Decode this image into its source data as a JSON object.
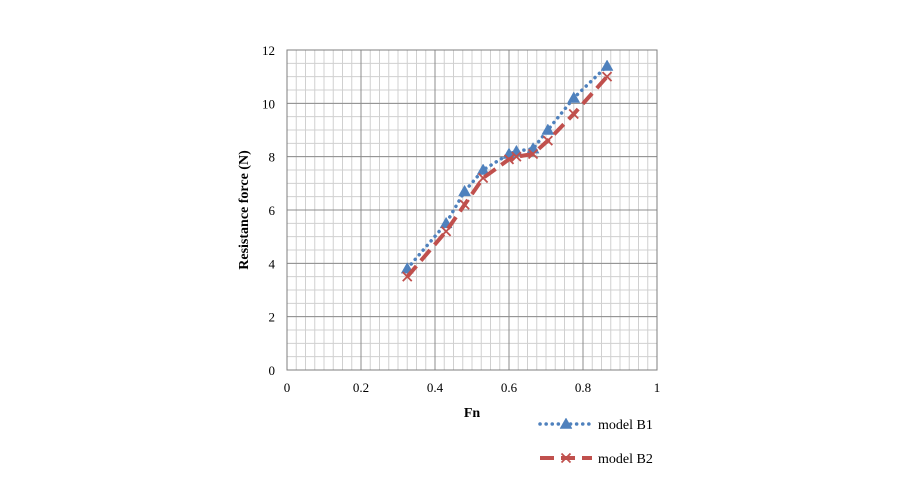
{
  "chart_data": {
    "type": "line",
    "title": "",
    "xlabel": "Fn",
    "ylabel": "Resistance force (N)",
    "xlim": [
      0,
      1
    ],
    "ylim": [
      0,
      12
    ],
    "x_ticks": [
      "0",
      "0.2",
      "0.4",
      "0.6",
      "0.8",
      "1"
    ],
    "y_ticks": [
      "0",
      "2",
      "4",
      "6",
      "8",
      "10",
      "12"
    ],
    "grid": true,
    "legend_position": "bottom-right",
    "series": [
      {
        "name": "model B1",
        "color": "#4f81bd",
        "line_style": "dotted",
        "marker": "triangle",
        "points": [
          {
            "x": 0.325,
            "y": 3.8
          },
          {
            "x": 0.43,
            "y": 5.5
          },
          {
            "x": 0.48,
            "y": 6.7
          },
          {
            "x": 0.53,
            "y": 7.5
          },
          {
            "x": 0.6,
            "y": 8.1
          },
          {
            "x": 0.62,
            "y": 8.2
          },
          {
            "x": 0.665,
            "y": 8.3
          },
          {
            "x": 0.705,
            "y": 9.0
          },
          {
            "x": 0.775,
            "y": 10.2
          },
          {
            "x": 0.865,
            "y": 11.4
          }
        ]
      },
      {
        "name": "model B2",
        "color": "#c0504d",
        "line_style": "dashed",
        "marker": "x",
        "points": [
          {
            "x": 0.325,
            "y": 3.5
          },
          {
            "x": 0.43,
            "y": 5.2
          },
          {
            "x": 0.48,
            "y": 6.2
          },
          {
            "x": 0.53,
            "y": 7.2
          },
          {
            "x": 0.6,
            "y": 7.9
          },
          {
            "x": 0.62,
            "y": 8.0
          },
          {
            "x": 0.665,
            "y": 8.1
          },
          {
            "x": 0.705,
            "y": 8.6
          },
          {
            "x": 0.775,
            "y": 9.6
          },
          {
            "x": 0.865,
            "y": 11.0
          }
        ]
      }
    ]
  }
}
